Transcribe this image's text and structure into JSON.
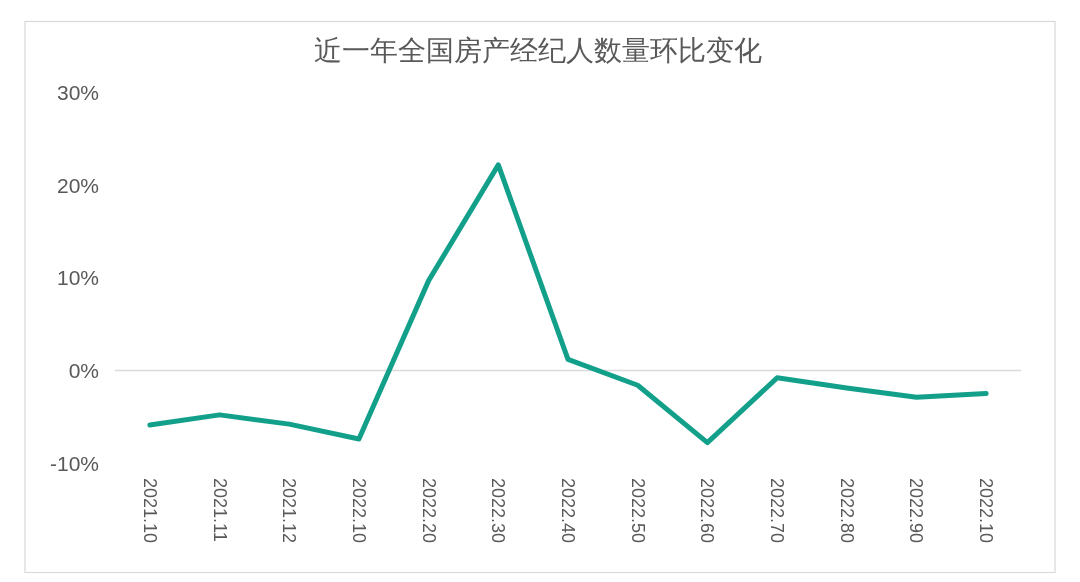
{
  "chart_data": {
    "type": "line",
    "title": "近一年全国房产经纪人数量环比变化",
    "categories": [
      "2021.10",
      "2021.11",
      "2021.12",
      "2022.10",
      "2022.20",
      "2022.30",
      "2022.40",
      "2022.50",
      "2022.60",
      "2022.70",
      "2022.80",
      "2022.90",
      "2022.10"
    ],
    "series": [
      {
        "color": "#13a08a",
        "values": [
          -5.9,
          -4.8,
          -5.8,
          -7.4,
          9.7,
          22.2,
          1.2,
          -1.6,
          -7.8,
          -0.8,
          -1.9,
          -2.9,
          -2.5
        ]
      }
    ],
    "ylim": [
      -10,
      30
    ],
    "yticks": [
      {
        "value": -10,
        "label": "-10%"
      },
      {
        "value": 0,
        "label": "0%"
      },
      {
        "value": 10,
        "label": "10%"
      },
      {
        "value": 20,
        "label": "20%"
      },
      {
        "value": 30,
        "label": "30%"
      }
    ],
    "line_style": "solid"
  }
}
